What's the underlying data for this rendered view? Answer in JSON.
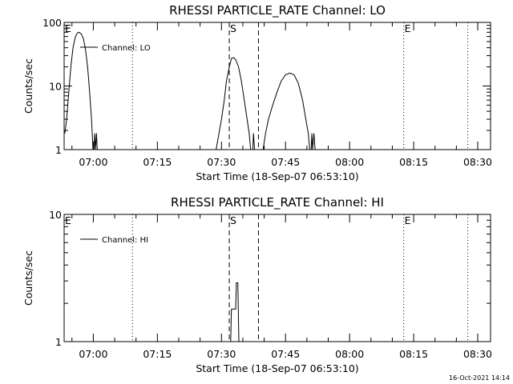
{
  "footer": {
    "timestamp": "16-Oct-2021 14:14"
  },
  "chart_data": [
    {
      "type": "line",
      "title": "RHESSI PARTICLE_RATE Channel: LO",
      "xlabel": "Start Time (18-Sep-07 06:53:10)",
      "ylabel": "Counts/sec",
      "yscale": "log",
      "xlim": [
        "06:53:10",
        "08:33:00"
      ],
      "ylim": [
        1,
        100
      ],
      "x_ticks": [
        "07:00",
        "07:15",
        "07:30",
        "07:45",
        "08:00",
        "08:15",
        "08:30"
      ],
      "y_ticks": [
        {
          "value": 1,
          "label": "1"
        },
        {
          "value": 10,
          "label": "10"
        },
        {
          "value": 100,
          "label": "100"
        }
      ],
      "legend": {
        "position": "top-left",
        "entries": [
          "Channel: LO"
        ]
      },
      "markers": [
        {
          "time": "06:53:10",
          "label": "E",
          "style": "none"
        },
        {
          "time": "07:09:10",
          "label": "",
          "style": "dotted"
        },
        {
          "time": "07:31:50",
          "label": "S",
          "style": "dashed"
        },
        {
          "time": "07:38:40",
          "label": "",
          "style": "dashed"
        },
        {
          "time": "08:12:40",
          "label": "E",
          "style": "dotted"
        },
        {
          "time": "08:27:40",
          "label": "",
          "style": "dotted"
        }
      ],
      "segments": [
        [
          [
            "06:53:20",
            1.8
          ],
          [
            "06:53:45",
            3
          ],
          [
            "06:54:15",
            8
          ],
          [
            "06:54:45",
            20
          ],
          [
            "06:55:15",
            40
          ],
          [
            "06:55:45",
            58
          ],
          [
            "06:56:15",
            68
          ],
          [
            "06:56:40",
            70
          ],
          [
            "06:57:10",
            66
          ],
          [
            "06:57:40",
            56
          ],
          [
            "06:58:10",
            38
          ],
          [
            "06:58:40",
            20
          ],
          [
            "06:59:05",
            9
          ],
          [
            "06:59:35",
            3
          ],
          [
            "06:59:55",
            1
          ]
        ],
        [
          [
            "07:00:10",
            1
          ],
          [
            "07:00:20",
            1.8
          ],
          [
            "07:00:30",
            1
          ],
          [
            "07:00:45",
            1.8
          ],
          [
            "07:00:55",
            1
          ]
        ],
        [
          [
            "07:28:45",
            1
          ],
          [
            "07:29:25",
            1.8
          ],
          [
            "07:30:00",
            3
          ],
          [
            "07:30:40",
            6
          ],
          [
            "07:31:10",
            12
          ],
          [
            "07:31:50",
            20
          ],
          [
            "07:32:20",
            27
          ],
          [
            "07:32:50",
            28
          ],
          [
            "07:33:20",
            26
          ],
          [
            "07:34:00",
            20
          ],
          [
            "07:34:40",
            12
          ],
          [
            "07:35:20",
            6
          ],
          [
            "07:36:00",
            3
          ],
          [
            "07:36:30",
            1.8
          ],
          [
            "07:36:50",
            1
          ]
        ],
        [
          [
            "07:37:20",
            1
          ],
          [
            "07:37:30",
            1.8
          ],
          [
            "07:37:45",
            1
          ]
        ],
        [
          [
            "07:39:45",
            1
          ],
          [
            "07:40:20",
            1.8
          ],
          [
            "07:41:00",
            3
          ],
          [
            "07:42:00",
            5
          ],
          [
            "07:43:00",
            8
          ],
          [
            "07:44:00",
            12
          ],
          [
            "07:45:00",
            15
          ],
          [
            "07:46:00",
            16
          ],
          [
            "07:47:00",
            15
          ],
          [
            "07:48:00",
            11
          ],
          [
            "07:49:00",
            6
          ],
          [
            "07:49:45",
            3
          ],
          [
            "07:50:20",
            1.8
          ],
          [
            "07:50:40",
            1
          ]
        ],
        [
          [
            "07:51:00",
            1
          ],
          [
            "07:51:10",
            1.8
          ],
          [
            "07:51:20",
            1
          ],
          [
            "07:51:40",
            1.8
          ],
          [
            "07:51:55",
            1
          ]
        ]
      ]
    },
    {
      "type": "line",
      "title": "RHESSI PARTICLE_RATE Channel: HI",
      "xlabel": "Start Time (18-Sep-07 06:53:10)",
      "ylabel": "Counts/sec",
      "yscale": "log",
      "xlim": [
        "06:53:10",
        "08:33:00"
      ],
      "ylim": [
        1,
        10
      ],
      "x_ticks": [
        "07:00",
        "07:15",
        "07:30",
        "07:45",
        "08:00",
        "08:15",
        "08:30"
      ],
      "y_ticks": [
        {
          "value": 1,
          "label": "1"
        },
        {
          "value": 10,
          "label": "10"
        }
      ],
      "legend": {
        "position": "top-left",
        "entries": [
          "Channel: HI"
        ]
      },
      "markers": [
        {
          "time": "06:53:10",
          "label": "E",
          "style": "none"
        },
        {
          "time": "07:09:10",
          "label": "",
          "style": "dotted"
        },
        {
          "time": "07:31:50",
          "label": "S",
          "style": "dashed"
        },
        {
          "time": "07:38:40",
          "label": "",
          "style": "dashed"
        },
        {
          "time": "08:12:40",
          "label": "E",
          "style": "dotted"
        },
        {
          "time": "08:27:40",
          "label": "",
          "style": "dotted"
        }
      ],
      "segments": [
        [
          [
            "07:32:10",
            1
          ],
          [
            "07:32:20",
            1.8
          ],
          [
            "07:32:50",
            1.8
          ],
          [
            "07:33:20",
            1.8
          ],
          [
            "07:33:30",
            2.9
          ],
          [
            "07:33:50",
            2.9
          ],
          [
            "07:34:05",
            1
          ]
        ]
      ]
    }
  ]
}
